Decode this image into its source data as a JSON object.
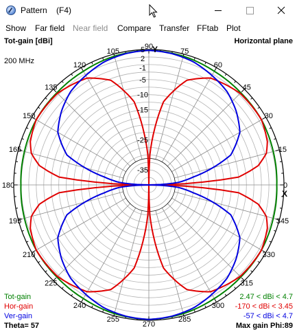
{
  "window": {
    "title": "Pattern    (F4)",
    "icon": "pattern-app-icon",
    "controls": [
      "minimize-icon",
      "maximize-icon",
      "close-icon"
    ]
  },
  "menu": [
    "Show",
    "Far field",
    "Near field",
    "Compare",
    "Transfer",
    "FFtab",
    "Plot"
  ],
  "menu_disabled": [
    "Near field"
  ],
  "chart": {
    "top_left_label": "Tot-gain [dBi]",
    "top_right_label": "Horizontal plane",
    "frequency": "200 MHz",
    "axis_x": "X",
    "axis_y": "Y",
    "angle_labels": [
      "0",
      "15",
      "30",
      "45",
      "60",
      "75",
      "90",
      "105",
      "120",
      "135",
      "150",
      "165",
      "180",
      "195",
      "210",
      "225",
      "240",
      "255",
      "270",
      "285",
      "300",
      "315",
      "330",
      "345"
    ],
    "radial_labels": [
      "5",
      "2",
      "-1",
      "-5",
      "-10",
      "-15",
      "-25",
      "-35"
    ],
    "legend": [
      {
        "name": "Tot-gain",
        "color": "#008000",
        "range": "2.47 < dBi < 4.7"
      },
      {
        "name": "Hor-gain",
        "color": "#e00000",
        "range": "-170 < dBi < 3.45"
      },
      {
        "name": "Ver-gain",
        "color": "#0000e0",
        "range": "-57 < dBi < 4.7"
      }
    ],
    "theta": "Theta= 57",
    "max_gain": "Max gain Phi:89"
  },
  "chart_data": {
    "type": "polar",
    "theta_unit": "deg",
    "r_unit": "dBi",
    "r_range": [
      -40,
      5
    ],
    "r_ticks": [
      5,
      2,
      -1,
      -5,
      -10,
      -15,
      -25,
      -35
    ],
    "series": [
      {
        "name": "Tot-gain",
        "phi": [
          0,
          15,
          30,
          45,
          60,
          75,
          90,
          105,
          120,
          135,
          150,
          165,
          180,
          195,
          210,
          225,
          240,
          255,
          270,
          285,
          300,
          315,
          330,
          345
        ],
        "values": [
          2.6,
          2.9,
          3.3,
          3.3,
          3.6,
          4.3,
          4.7,
          4.3,
          3.6,
          3.3,
          3.3,
          2.9,
          2.6,
          2.9,
          3.3,
          3.3,
          3.6,
          4.3,
          4.7,
          4.3,
          3.6,
          3.3,
          3.3,
          2.9
        ]
      },
      {
        "name": "Hor-gain",
        "phi": [
          0,
          2,
          5,
          10,
          15,
          20,
          30,
          45,
          60,
          70,
          80,
          88,
          90,
          92,
          100,
          110,
          120,
          135,
          150,
          160,
          165,
          170,
          175,
          178,
          180,
          182,
          185,
          190,
          195,
          200,
          210,
          225,
          240,
          250,
          260,
          268,
          270,
          272,
          280,
          290,
          300,
          315,
          330,
          340,
          345,
          350,
          355,
          358
        ],
        "values": [
          -40,
          -28,
          -10,
          -3,
          0.5,
          2,
          3.3,
          3.0,
          1.0,
          -3,
          -12,
          -30,
          -40,
          -30,
          -12,
          -3,
          1.0,
          3.0,
          3.3,
          2,
          0.5,
          -3,
          -10,
          -28,
          -40,
          -28,
          -10,
          -3,
          0.5,
          2,
          3.3,
          3.0,
          1.0,
          -3,
          -12,
          -30,
          -40,
          -30,
          -12,
          -3,
          1.0,
          3.0,
          3.3,
          2,
          0.5,
          -3,
          -10,
          -28
        ]
      },
      {
        "name": "Ver-gain",
        "phi": [
          0,
          2,
          5,
          10,
          20,
          30,
          40,
          50,
          60,
          70,
          80,
          90,
          100,
          110,
          120,
          130,
          140,
          150,
          160,
          170,
          175,
          178,
          180,
          182,
          185,
          190,
          200,
          210,
          220,
          230,
          240,
          250,
          260,
          270,
          280,
          290,
          300,
          310,
          320,
          330,
          340,
          350,
          355,
          358
        ],
        "values": [
          -40,
          -36,
          -30,
          -25,
          -11,
          -5,
          -2,
          0.5,
          2,
          3.5,
          4.3,
          4.7,
          4.3,
          3.5,
          2,
          0.5,
          -2,
          -5,
          -11,
          -25,
          -30,
          -36,
          -40,
          -36,
          -30,
          -25,
          -11,
          -5,
          -2,
          0.5,
          2,
          3.5,
          4.3,
          4.7,
          4.3,
          3.5,
          2,
          0.5,
          -2,
          -5,
          -11,
          -25,
          -30,
          -36
        ]
      }
    ]
  }
}
